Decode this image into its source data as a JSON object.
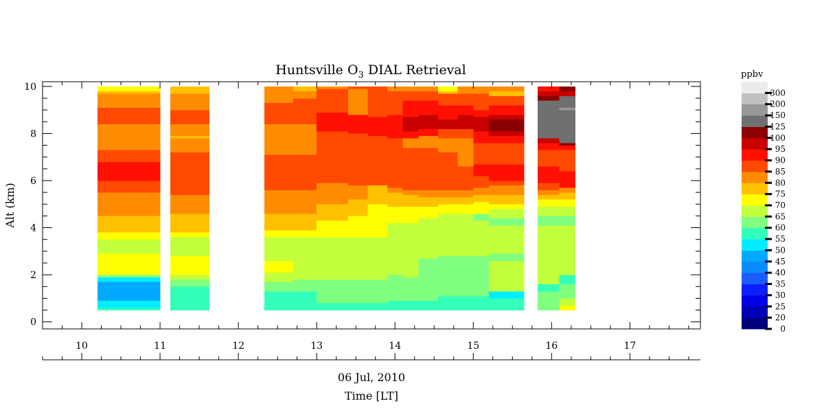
{
  "chart_data": {
    "type": "heatmap",
    "title_prefix": "Huntsville O",
    "title_sub": "3",
    "title_suffix": " DIAL Retrieval",
    "ylabel": "Alt (km)",
    "xlabel_date": "06 Jul, 2010",
    "xlabel": "Time [LT]",
    "xlim": [
      9.5,
      17.9
    ],
    "ylim": [
      -0.3,
      10.2
    ],
    "x_ticks": [
      10,
      11,
      12,
      13,
      14,
      15,
      16,
      17
    ],
    "y_ticks": [
      0,
      2,
      4,
      6,
      8,
      10
    ],
    "colorbar": {
      "label": "ppbv",
      "levels": [
        0,
        20,
        25,
        30,
        35,
        40,
        45,
        50,
        55,
        60,
        65,
        70,
        75,
        80,
        85,
        90,
        95,
        100,
        125,
        150,
        200,
        300
      ],
      "colors": [
        "#00007f",
        "#0000b4",
        "#0000e6",
        "#0d1fff",
        "#1a5cff",
        "#0a8cff",
        "#00aaff",
        "#00eeff",
        "#33ffbb",
        "#80ff80",
        "#c2ff3c",
        "#ffff00",
        "#ffc000",
        "#ff8c00",
        "#ff4a00",
        "#ff1000",
        "#c80000",
        "#8b0000",
        "#707070",
        "#999999",
        "#c0c0c0",
        "#ebebeb"
      ]
    },
    "columns": [
      {
        "x0": 10.2,
        "x1": 11.0,
        "segments": [
          [
            0.5,
            0.6,
            8
          ],
          [
            0.6,
            0.9,
            7
          ],
          [
            0.9,
            1.7,
            6
          ],
          [
            1.7,
            1.9,
            7
          ],
          [
            1.9,
            2.0,
            9
          ],
          [
            2.0,
            2.9,
            11
          ],
          [
            2.9,
            3.5,
            10
          ],
          [
            3.5,
            3.8,
            11
          ],
          [
            3.8,
            4.5,
            12
          ],
          [
            4.5,
            5.5,
            13
          ],
          [
            5.5,
            6.0,
            14
          ],
          [
            6.0,
            6.8,
            15
          ],
          [
            6.8,
            7.3,
            14
          ],
          [
            7.3,
            8.4,
            13
          ],
          [
            8.4,
            9.1,
            14
          ],
          [
            9.1,
            9.7,
            13
          ],
          [
            9.7,
            9.8,
            12
          ],
          [
            9.8,
            10.0,
            11
          ]
        ]
      },
      {
        "x0": 11.13,
        "x1": 11.63,
        "segments": [
          [
            0.5,
            1.5,
            8
          ],
          [
            1.5,
            1.8,
            9
          ],
          [
            1.8,
            2.0,
            10
          ],
          [
            2.0,
            2.8,
            11
          ],
          [
            2.8,
            3.6,
            10
          ],
          [
            3.6,
            3.8,
            11
          ],
          [
            3.8,
            4.6,
            12
          ],
          [
            4.6,
            5.4,
            13
          ],
          [
            5.4,
            7.2,
            14
          ],
          [
            7.2,
            7.8,
            13
          ],
          [
            7.8,
            7.9,
            12
          ],
          [
            7.9,
            8.4,
            13
          ],
          [
            8.4,
            9.0,
            14
          ],
          [
            9.0,
            9.7,
            13
          ],
          [
            9.7,
            10.0,
            12
          ]
        ]
      },
      {
        "x0": 12.33,
        "x1": 12.7,
        "segments": [
          [
            0.5,
            1.3,
            8
          ],
          [
            1.3,
            1.7,
            9
          ],
          [
            1.7,
            2.1,
            10
          ],
          [
            2.1,
            2.6,
            11
          ],
          [
            2.6,
            3.6,
            10
          ],
          [
            3.6,
            3.9,
            11
          ],
          [
            3.9,
            4.6,
            12
          ],
          [
            4.6,
            5.6,
            13
          ],
          [
            5.6,
            7.1,
            14
          ],
          [
            7.1,
            8.4,
            13
          ],
          [
            8.4,
            9.3,
            14
          ],
          [
            9.3,
            9.6,
            13
          ],
          [
            9.6,
            10.0,
            13
          ]
        ]
      },
      {
        "x0": 12.7,
        "x1": 13.0,
        "segments": [
          [
            0.5,
            1.3,
            8
          ],
          [
            1.3,
            1.8,
            9
          ],
          [
            1.8,
            2.4,
            10
          ],
          [
            2.4,
            3.6,
            10
          ],
          [
            3.6,
            3.9,
            11
          ],
          [
            3.9,
            4.6,
            12
          ],
          [
            4.6,
            5.6,
            13
          ],
          [
            5.6,
            7.1,
            14
          ],
          [
            7.1,
            8.4,
            13
          ],
          [
            8.4,
            8.9,
            14
          ],
          [
            8.9,
            9.5,
            14
          ],
          [
            9.5,
            9.8,
            13
          ],
          [
            9.8,
            10.0,
            12
          ]
        ]
      },
      {
        "x0": 13.0,
        "x1": 13.4,
        "segments": [
          [
            0.5,
            0.8,
            8
          ],
          [
            0.8,
            1.8,
            9
          ],
          [
            1.8,
            3.6,
            10
          ],
          [
            3.6,
            4.3,
            11
          ],
          [
            4.3,
            5.0,
            12
          ],
          [
            5.0,
            5.9,
            13
          ],
          [
            5.9,
            8.1,
            14
          ],
          [
            8.1,
            8.9,
            15
          ],
          [
            8.9,
            9.3,
            14
          ],
          [
            9.3,
            9.9,
            14
          ],
          [
            9.9,
            10.0,
            13
          ]
        ]
      },
      {
        "x0": 13.4,
        "x1": 13.65,
        "segments": [
          [
            0.5,
            0.8,
            8
          ],
          [
            0.8,
            1.8,
            9
          ],
          [
            1.8,
            3.6,
            10
          ],
          [
            3.6,
            4.5,
            11
          ],
          [
            4.5,
            5.2,
            12
          ],
          [
            5.2,
            5.8,
            13
          ],
          [
            5.8,
            8.0,
            14
          ],
          [
            8.0,
            8.8,
            15
          ],
          [
            8.8,
            9.2,
            13
          ],
          [
            9.2,
            9.9,
            13
          ],
          [
            9.9,
            10.0,
            14
          ]
        ]
      },
      {
        "x0": 13.65,
        "x1": 13.9,
        "segments": [
          [
            0.5,
            0.8,
            8
          ],
          [
            0.8,
            1.8,
            9
          ],
          [
            1.8,
            3.6,
            10
          ],
          [
            3.6,
            4.5,
            11
          ],
          [
            4.5,
            5.0,
            11
          ],
          [
            5.0,
            5.8,
            12
          ],
          [
            5.8,
            7.9,
            14
          ],
          [
            7.9,
            8.7,
            15
          ],
          [
            8.7,
            9.9,
            14
          ],
          [
            9.9,
            10.0,
            14
          ]
        ]
      },
      {
        "x0": 13.9,
        "x1": 14.1,
        "segments": [
          [
            0.5,
            0.9,
            8
          ],
          [
            0.9,
            2.0,
            9
          ],
          [
            2.0,
            4.2,
            10
          ],
          [
            4.2,
            4.9,
            11
          ],
          [
            4.9,
            5.5,
            12
          ],
          [
            5.5,
            5.7,
            13
          ],
          [
            5.7,
            7.8,
            14
          ],
          [
            7.8,
            8.8,
            15
          ],
          [
            8.8,
            9.8,
            14
          ],
          [
            9.8,
            10.0,
            13
          ]
        ]
      },
      {
        "x0": 14.1,
        "x1": 14.3,
        "segments": [
          [
            0.5,
            0.9,
            8
          ],
          [
            0.9,
            1.9,
            9
          ],
          [
            1.9,
            4.2,
            10
          ],
          [
            4.2,
            4.9,
            11
          ],
          [
            4.9,
            5.4,
            12
          ],
          [
            5.4,
            5.6,
            13
          ],
          [
            5.6,
            7.4,
            14
          ],
          [
            7.4,
            7.8,
            13
          ],
          [
            7.8,
            8.1,
            15
          ],
          [
            8.1,
            8.7,
            16
          ],
          [
            8.7,
            9.4,
            15
          ],
          [
            9.4,
            9.8,
            14
          ],
          [
            9.8,
            10.0,
            13
          ]
        ]
      },
      {
        "x0": 14.3,
        "x1": 14.55,
        "segments": [
          [
            0.5,
            0.9,
            8
          ],
          [
            0.9,
            2.7,
            9
          ],
          [
            2.7,
            4.4,
            10
          ],
          [
            4.4,
            4.9,
            11
          ],
          [
            4.9,
            5.3,
            12
          ],
          [
            5.3,
            5.6,
            13
          ],
          [
            5.6,
            7.4,
            14
          ],
          [
            7.4,
            7.9,
            13
          ],
          [
            7.9,
            8.2,
            15
          ],
          [
            8.2,
            8.8,
            16
          ],
          [
            8.8,
            9.4,
            15
          ],
          [
            9.4,
            9.8,
            14
          ],
          [
            9.8,
            10.0,
            13
          ]
        ]
      },
      {
        "x0": 14.55,
        "x1": 14.8,
        "segments": [
          [
            0.5,
            1.1,
            8
          ],
          [
            1.1,
            2.8,
            9
          ],
          [
            2.8,
            4.6,
            10
          ],
          [
            4.6,
            5.0,
            11
          ],
          [
            5.0,
            5.3,
            12
          ],
          [
            5.3,
            5.6,
            13
          ],
          [
            5.6,
            7.2,
            14
          ],
          [
            7.2,
            7.8,
            13
          ],
          [
            7.8,
            8.2,
            14
          ],
          [
            8.2,
            8.6,
            16
          ],
          [
            8.6,
            9.2,
            15
          ],
          [
            9.2,
            9.7,
            14
          ],
          [
            9.7,
            9.8,
            12
          ],
          [
            9.8,
            10.0,
            11
          ]
        ]
      },
      {
        "x0": 14.8,
        "x1": 15.0,
        "segments": [
          [
            0.5,
            1.1,
            8
          ],
          [
            1.1,
            2.8,
            9
          ],
          [
            2.8,
            4.6,
            10
          ],
          [
            4.6,
            5.0,
            11
          ],
          [
            5.0,
            5.3,
            12
          ],
          [
            5.3,
            5.6,
            13
          ],
          [
            5.6,
            6.6,
            14
          ],
          [
            6.6,
            7.8,
            13
          ],
          [
            7.8,
            8.2,
            14
          ],
          [
            8.2,
            8.8,
            16
          ],
          [
            8.8,
            9.2,
            15
          ],
          [
            9.2,
            9.7,
            14
          ],
          [
            9.7,
            10.0,
            13
          ]
        ]
      },
      {
        "x0": 15.0,
        "x1": 15.2,
        "segments": [
          [
            0.5,
            1.1,
            8
          ],
          [
            1.1,
            2.8,
            9
          ],
          [
            2.8,
            4.3,
            10
          ],
          [
            4.3,
            4.6,
            9
          ],
          [
            4.6,
            5.1,
            11
          ],
          [
            5.1,
            5.4,
            12
          ],
          [
            5.4,
            5.7,
            13
          ],
          [
            5.7,
            6.2,
            14
          ],
          [
            6.2,
            6.7,
            15
          ],
          [
            6.7,
            7.6,
            14
          ],
          [
            7.6,
            8.1,
            15
          ],
          [
            8.1,
            8.7,
            16
          ],
          [
            8.7,
            9.0,
            15
          ],
          [
            9.0,
            9.7,
            14
          ],
          [
            9.7,
            10.0,
            13
          ]
        ]
      },
      {
        "x0": 15.2,
        "x1": 15.65,
        "segments": [
          [
            0.5,
            1.0,
            8
          ],
          [
            1.0,
            1.3,
            7
          ],
          [
            1.3,
            2.6,
            10
          ],
          [
            2.6,
            2.9,
            9
          ],
          [
            2.9,
            4.1,
            10
          ],
          [
            4.1,
            4.4,
            9
          ],
          [
            4.4,
            4.8,
            10
          ],
          [
            4.8,
            5.0,
            11
          ],
          [
            5.0,
            5.4,
            12
          ],
          [
            5.4,
            5.8,
            13
          ],
          [
            5.8,
            6.0,
            14
          ],
          [
            6.0,
            6.7,
            15
          ],
          [
            6.7,
            7.6,
            14
          ],
          [
            7.6,
            7.9,
            15
          ],
          [
            7.9,
            8.1,
            16
          ],
          [
            8.1,
            8.6,
            17
          ],
          [
            8.6,
            8.8,
            16
          ],
          [
            8.8,
            9.2,
            15
          ],
          [
            9.2,
            9.6,
            14
          ],
          [
            9.6,
            9.8,
            12
          ],
          [
            9.8,
            10.0,
            13
          ]
        ]
      },
      {
        "x0": 15.82,
        "x1": 16.1,
        "segments": [
          [
            0.5,
            1.3,
            9
          ],
          [
            1.3,
            1.6,
            8
          ],
          [
            1.6,
            4.1,
            10
          ],
          [
            4.1,
            4.5,
            9
          ],
          [
            4.5,
            4.9,
            10
          ],
          [
            4.9,
            5.2,
            11
          ],
          [
            5.2,
            5.4,
            12
          ],
          [
            5.4,
            5.6,
            13
          ],
          [
            5.6,
            5.9,
            14
          ],
          [
            5.9,
            6.6,
            15
          ],
          [
            6.6,
            7.3,
            14
          ],
          [
            7.3,
            7.6,
            15
          ],
          [
            7.6,
            7.8,
            16
          ],
          [
            7.8,
            8.8,
            18
          ],
          [
            8.8,
            9.4,
            18
          ],
          [
            9.4,
            9.6,
            17
          ],
          [
            9.6,
            9.8,
            16
          ],
          [
            9.8,
            10.0,
            15
          ]
        ]
      },
      {
        "x0": 16.1,
        "x1": 16.3,
        "segments": [
          [
            0.5,
            0.7,
            11
          ],
          [
            0.7,
            1.0,
            10
          ],
          [
            1.0,
            1.6,
            9
          ],
          [
            1.6,
            2.0,
            8
          ],
          [
            2.0,
            4.1,
            10
          ],
          [
            4.1,
            4.5,
            9
          ],
          [
            4.5,
            4.9,
            10
          ],
          [
            4.9,
            5.2,
            11
          ],
          [
            5.2,
            5.5,
            12
          ],
          [
            5.5,
            5.7,
            13
          ],
          [
            5.7,
            6.4,
            15
          ],
          [
            6.4,
            7.3,
            14
          ],
          [
            7.3,
            7.5,
            15
          ],
          [
            7.5,
            7.6,
            17
          ],
          [
            7.6,
            9.0,
            18
          ],
          [
            9.0,
            9.1,
            19
          ],
          [
            9.1,
            9.6,
            18
          ],
          [
            9.6,
            9.8,
            16
          ],
          [
            9.8,
            10.0,
            17
          ]
        ]
      }
    ]
  }
}
